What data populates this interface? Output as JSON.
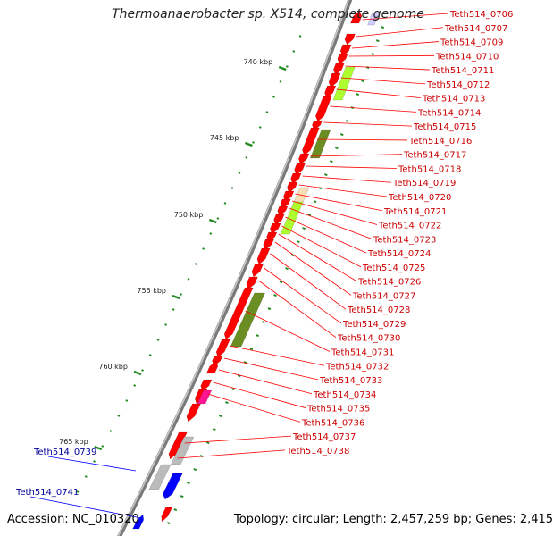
{
  "title": "Thermoanaerobacter sp. X514, complete genome",
  "footer": {
    "accession": "Accession: NC_010320",
    "topology": "Topology: circular; Length: 2,457,259 bp; Genes: 2,415"
  },
  "colors": {
    "backbone": "#999999",
    "gene_red": "#ff0000",
    "gene_blue": "#0000ff",
    "gene_gray": "#bbbbbb",
    "gene_olive": "#6b8e23",
    "gene_lime": "#adff2f",
    "gene_wheat": "#f5deb3",
    "gene_magenta": "#ff1493",
    "label_red": "#cc0000",
    "label_blue": "#000099",
    "tick_green": "#228b22"
  },
  "scale_labels": [
    "740 kbp",
    "745 kbp",
    "750 kbp",
    "755 kbp",
    "760 kbp",
    "765 kbp"
  ],
  "right_labels": [
    "Teth514_0706",
    "Teth514_0707",
    "Teth514_0709",
    "Teth514_0710",
    "Teth514_0711",
    "Teth514_0712",
    "Teth514_0713",
    "Teth514_0714",
    "Teth514_0715",
    "Teth514_0716",
    "Teth514_0717",
    "Teth514_0718",
    "Teth514_0719",
    "Teth514_0720",
    "Teth514_0721",
    "Teth514_0722",
    "Teth514_0723",
    "Teth514_0724",
    "Teth514_0725",
    "Teth514_0726",
    "Teth514_0727",
    "Teth514_0728",
    "Teth514_0729",
    "Teth514_0730",
    "Teth514_0731",
    "Teth514_0732",
    "Teth514_0733",
    "Teth514_0734",
    "Teth514_0735",
    "Teth514_0736",
    "Teth514_0737",
    "Teth514_0738"
  ],
  "left_labels": [
    "Teth514_0739",
    "Teth514_0741"
  ]
}
